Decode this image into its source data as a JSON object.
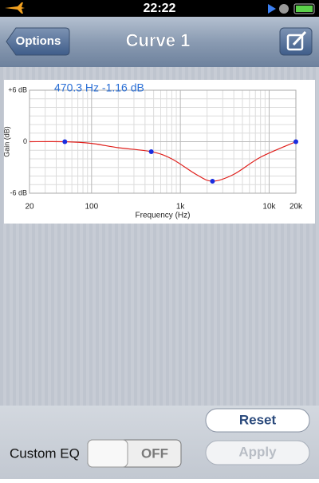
{
  "status_bar": {
    "time": "22:22"
  },
  "nav_bar": {
    "back": "Options",
    "title": "Curve 1"
  },
  "chart_data": {
    "type": "line",
    "annotation": "470.3 Hz -1.16 dB",
    "x_label": "Frequency (Hz)",
    "y_label": "Gain (dB)",
    "log_x": true,
    "grid": true,
    "xlim": [
      20,
      20000
    ],
    "xticks": [
      20,
      100,
      {
        "value": 1000,
        "label": "1k"
      },
      {
        "value": 10000,
        "label": "10k"
      },
      {
        "value": 20000,
        "label": "20k"
      }
    ],
    "x_minor_grid": [
      30,
      40,
      50,
      60,
      70,
      80,
      90,
      200,
      300,
      400,
      500,
      600,
      700,
      800,
      900,
      2000,
      3000,
      4000,
      5000,
      6000,
      7000,
      8000,
      9000
    ],
    "ylim": [
      -6,
      6
    ],
    "yticks": [
      {
        "value": 6,
        "label": "+6 dB"
      },
      0,
      {
        "value": -6,
        "label": "-6 dB"
      }
    ],
    "y_minor_grid": [
      -5,
      -4,
      -3,
      -2,
      -1,
      1,
      2,
      3,
      4,
      5
    ],
    "series": [
      {
        "color": "#e0201c",
        "x": [
          20,
          50,
          100,
          200,
          470.3,
          800,
          1500,
          2300,
          4000,
          8000,
          20000
        ],
        "values": [
          0,
          0,
          -0.2,
          -0.7,
          -1.16,
          -2.0,
          -3.8,
          -4.6,
          -3.8,
          -1.8,
          0
        ]
      },
      {
        "color": "#1a2de0",
        "markers": true,
        "x": [
          50,
          470.3,
          2300,
          20000
        ],
        "values": [
          0,
          -1.16,
          -4.6,
          0
        ]
      }
    ]
  },
  "controls": {
    "reset": "Reset",
    "apply": "Apply",
    "custom_eq": "Custom EQ",
    "switch": "OFF"
  }
}
